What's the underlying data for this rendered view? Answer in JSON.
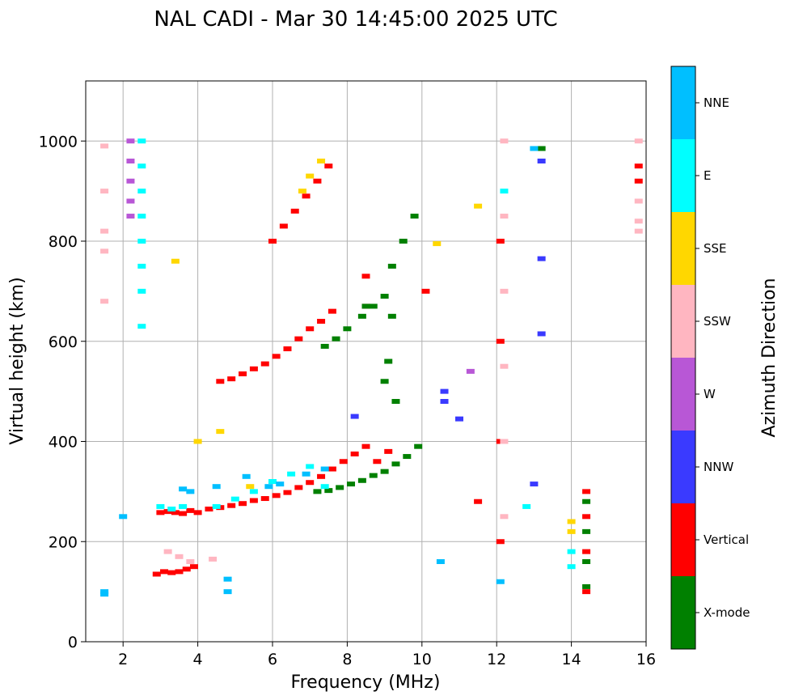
{
  "chart_data": {
    "type": "scatter",
    "title": "NAL CADI - Mar 30 14:45:00 2025 UTC",
    "xlabel": "Frequency (MHz)",
    "ylabel": "Virtual height (km)",
    "xlim": [
      1,
      16
    ],
    "ylim": [
      0,
      1120
    ],
    "xticks": [
      2,
      4,
      6,
      8,
      10,
      12,
      14,
      16
    ],
    "yticks": [
      0,
      200,
      400,
      600,
      800,
      1000
    ],
    "grid": true,
    "colorbar": {
      "label": "Azimuth Direction",
      "categories": [
        {
          "name": "X-mode",
          "color": "#008000"
        },
        {
          "name": "Vertical",
          "color": "#ff0000"
        },
        {
          "name": "NNW",
          "color": "#3a3aff"
        },
        {
          "name": "W",
          "color": "#b857d6"
        },
        {
          "name": "SSW",
          "color": "#ffb6c1"
        },
        {
          "name": "SSE",
          "color": "#ffd700"
        },
        {
          "name": "E",
          "color": "#00ffff"
        },
        {
          "name": "NNE",
          "color": "#00bfff"
        }
      ]
    },
    "series": [
      {
        "name": "Vertical",
        "x": [
          3.0,
          3.2,
          3.4,
          3.6,
          3.8,
          4.0,
          4.3,
          4.6,
          4.9,
          5.2,
          5.5,
          5.8,
          6.1,
          6.4,
          6.7,
          7.0,
          7.3,
          7.6,
          7.9,
          8.2,
          8.5,
          8.8,
          9.1,
          2.9,
          3.1,
          3.3,
          3.5,
          3.7,
          3.9,
          4.6,
          4.9,
          5.2,
          5.5,
          5.8,
          6.1,
          6.4,
          6.7,
          7.0,
          7.3,
          7.6,
          6.0,
          6.3,
          6.6,
          6.9,
          7.2,
          7.5,
          12.1,
          12.1,
          12.1,
          12.1,
          14.4,
          14.4,
          14.4,
          14.4,
          15.8,
          15.8,
          8.5,
          8.5,
          10.1,
          11.5
        ],
        "y": [
          258,
          260,
          258,
          256,
          262,
          258,
          265,
          268,
          272,
          276,
          282,
          286,
          292,
          298,
          308,
          318,
          330,
          345,
          360,
          375,
          390,
          360,
          380,
          135,
          140,
          138,
          140,
          145,
          150,
          520,
          525,
          535,
          545,
          555,
          570,
          585,
          605,
          625,
          640,
          660,
          800,
          830,
          860,
          890,
          920,
          950,
          800,
          600,
          400,
          200,
          300,
          250,
          180,
          100,
          950,
          920,
          730,
          670,
          700,
          280
        ]
      },
      {
        "name": "X-mode",
        "x": [
          7.2,
          7.5,
          7.8,
          8.1,
          8.4,
          8.7,
          9.0,
          9.3,
          9.6,
          9.9,
          7.4,
          7.7,
          8.0,
          8.4,
          8.7,
          9.0,
          9.2,
          9.5,
          9.8,
          14.4,
          14.4,
          14.4,
          14.4,
          9.2,
          13.2,
          8.5,
          9.0,
          9.3,
          9.1
        ],
        "y": [
          300,
          302,
          308,
          315,
          322,
          332,
          340,
          355,
          370,
          390,
          590,
          605,
          625,
          650,
          670,
          690,
          750,
          800,
          850,
          280,
          220,
          160,
          110,
          650,
          985,
          670,
          520,
          480,
          560
        ]
      },
      {
        "name": "NNW",
        "x": [
          13.2,
          13.2,
          13.2,
          10.6,
          10.6,
          11.0,
          8.2,
          13.0
        ],
        "y": [
          960,
          765,
          615,
          500,
          480,
          445,
          450,
          315
        ]
      },
      {
        "name": "W",
        "x": [
          2.2,
          2.2,
          2.2,
          2.2,
          2.2,
          11.3
        ],
        "y": [
          1000,
          960,
          920,
          880,
          850,
          540
        ]
      },
      {
        "name": "SSW",
        "x": [
          1.5,
          1.5,
          1.5,
          1.5,
          1.5,
          3.2,
          3.5,
          3.8,
          4.4,
          12.2,
          12.2,
          12.2,
          12.2,
          12.2,
          12.2,
          15.8,
          15.8,
          15.8,
          15.8
        ],
        "y": [
          990,
          900,
          820,
          780,
          680,
          180,
          170,
          160,
          165,
          1000,
          850,
          700,
          550,
          400,
          250,
          1000,
          880,
          840,
          820
        ]
      },
      {
        "name": "SSE",
        "x": [
          7.0,
          7.3,
          6.8,
          4.0,
          4.6,
          14.0,
          14.0,
          3.4,
          10.4,
          11.5,
          5.4
        ],
        "y": [
          930,
          960,
          900,
          400,
          420,
          240,
          220,
          760,
          795,
          870,
          310
        ]
      },
      {
        "name": "E",
        "x": [
          2.5,
          2.5,
          2.5,
          2.5,
          2.5,
          2.5,
          2.5,
          2.5,
          3.0,
          3.3,
          3.6,
          4.5,
          5.0,
          5.5,
          6.0,
          6.5,
          7.0,
          7.4,
          14.0,
          14.0,
          12.2,
          12.8
        ],
        "y": [
          1000,
          950,
          900,
          850,
          800,
          750,
          700,
          630,
          270,
          265,
          270,
          270,
          285,
          300,
          320,
          335,
          350,
          310,
          180,
          150,
          900,
          270
        ]
      },
      {
        "name": "NNE",
        "x": [
          1.5,
          1.5,
          2.0,
          3.6,
          4.5,
          5.3,
          6.2,
          6.9,
          7.4,
          4.8,
          5.9,
          12.1,
          13.0,
          10.5,
          3.8,
          4.8
        ],
        "y": [
          100,
          95,
          250,
          305,
          310,
          330,
          315,
          335,
          345,
          100,
          310,
          120,
          985,
          160,
          300,
          125
        ]
      }
    ]
  }
}
